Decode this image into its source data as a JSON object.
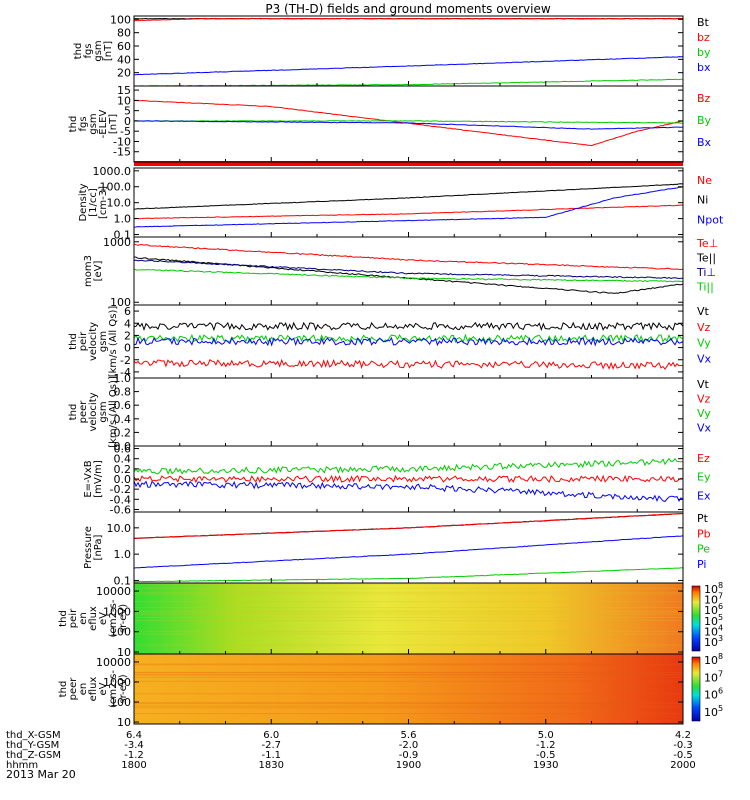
{
  "title": "P3 (TH-D) fields and ground moments overview",
  "date": "2013 Mar 20",
  "footer": {
    "rows": [
      {
        "label": "thd_X-GSM",
        "values": [
          "6.4",
          "6.0",
          "5.6",
          "5.0",
          "4.2"
        ]
      },
      {
        "label": "thd_Y-GSM",
        "values": [
          "-3.4",
          "-2.7",
          "-2.0",
          "-1.2",
          "-0.3"
        ]
      },
      {
        "label": "thd_Z-GSM",
        "values": [
          "-1.2",
          "-1.1",
          "-0.9",
          "-0.5",
          "-0.5"
        ]
      },
      {
        "label": "hhmm",
        "values": [
          "1800",
          "1830",
          "1900",
          "1930",
          "2000"
        ]
      }
    ]
  },
  "chart_data": [
    {
      "type": "line",
      "ylabel": [
        "thd",
        "fgs",
        "gsm",
        "[nT]"
      ],
      "y_ticks": [
        "100",
        "80",
        "60",
        "40",
        "20"
      ],
      "ylim": [
        0,
        105
      ],
      "x_range": [
        "18:00",
        "20:00"
      ],
      "series": [
        {
          "name": "Bt",
          "color": "#000000",
          "x": [
            "18:00",
            "20:00"
          ],
          "y": [
            101,
            101
          ]
        },
        {
          "name": "bz",
          "color": "#ff0000",
          "x": [
            "18:00",
            "18:15",
            "20:00"
          ],
          "y": [
            98,
            101,
            101
          ]
        },
        {
          "name": "by",
          "color": "#00cc00",
          "x": [
            "18:00",
            "19:00",
            "20:00"
          ],
          "y": [
            0,
            2,
            10
          ]
        },
        {
          "name": "bx",
          "color": "#0000ff",
          "x": [
            "18:00",
            "19:00",
            "20:00"
          ],
          "y": [
            17,
            30,
            44
          ]
        }
      ]
    },
    {
      "type": "line",
      "ylabel": [
        "thd",
        "fgs",
        "gsm",
        "-ELEV",
        "[nT]"
      ],
      "y_ticks": [
        "15",
        "10",
        "5",
        "0",
        "-5",
        "-10",
        "-15"
      ],
      "ylim": [
        -20,
        17
      ],
      "x_range": [
        "18:00",
        "20:00"
      ],
      "series": [
        {
          "name": "Bz",
          "color": "#ff0000",
          "x": [
            "18:00",
            "18:30",
            "19:25",
            "19:40",
            "19:50",
            "20:00"
          ],
          "y": [
            10,
            7,
            -8,
            -12,
            -5,
            0
          ]
        },
        {
          "name": "By",
          "color": "#00cc00",
          "x": [
            "18:00",
            "19:00",
            "20:00"
          ],
          "y": [
            0,
            0,
            -1
          ]
        },
        {
          "name": "Bx",
          "color": "#0000ff",
          "x": [
            "18:00",
            "19:00",
            "19:40",
            "20:00"
          ],
          "y": [
            0,
            -1,
            -4,
            -3
          ]
        }
      ]
    },
    {
      "type": "line",
      "ylabel": [
        "Density",
        "[1/cc]",
        "[cm-3]"
      ],
      "scale": "log",
      "y_ticks": [
        "1000.0",
        "100.0",
        "10.0",
        "1.0",
        "0.1"
      ],
      "ylim": [
        0.07,
        1500
      ],
      "x_range": [
        "18:00",
        "20:00"
      ],
      "series": [
        {
          "name": "Ne",
          "color": "#ff0000",
          "x": [
            "18:00",
            "19:00",
            "20:00"
          ],
          "y": [
            1,
            2,
            7
          ]
        },
        {
          "name": "Ni",
          "color": "#000000",
          "x": [
            "18:00",
            "19:00",
            "20:00"
          ],
          "y": [
            4,
            20,
            150
          ]
        },
        {
          "name": "Npot",
          "color": "#0000ff",
          "x": [
            "18:00",
            "19:30",
            "19:45",
            "20:00"
          ],
          "y": [
            0.3,
            1.2,
            20,
            100
          ]
        }
      ]
    },
    {
      "type": "line",
      "ylabel": [
        "mom3",
        "[eV]"
      ],
      "scale": "log",
      "y_ticks": [
        "1000",
        "100"
      ],
      "ylim": [
        90,
        1200
      ],
      "x_range": [
        "18:00",
        "20:00"
      ],
      "series": [
        {
          "name": "Te⊥",
          "color": "#ff0000",
          "x": [
            "18:00",
            "19:00",
            "20:00"
          ],
          "y": [
            900,
            500,
            350
          ]
        },
        {
          "name": "Te||",
          "color": "#000000",
          "x": [
            "18:00",
            "19:00",
            "19:45",
            "20:00"
          ],
          "y": [
            550,
            250,
            140,
            200
          ]
        },
        {
          "name": "Ti⊥",
          "color": "#000080",
          "x": [
            "18:00",
            "19:00",
            "20:00"
          ],
          "y": [
            500,
            300,
            250
          ]
        },
        {
          "name": "Ti||",
          "color": "#00cc00",
          "x": [
            "18:00",
            "19:00",
            "20:00"
          ],
          "y": [
            350,
            250,
            220
          ]
        }
      ]
    },
    {
      "type": "line",
      "ylabel": [
        "thd",
        "peir",
        "velocity",
        "gsm",
        "[km/s (All Qs)]"
      ],
      "y_ticks": [
        "6",
        "4",
        "2",
        "0",
        "-2",
        "-4"
      ],
      "ylim": [
        -5,
        7
      ],
      "x_range": [
        "18:00",
        "20:00"
      ],
      "series": [
        {
          "name": "Vt",
          "color": "#000000",
          "x": [
            "18:00",
            "20:00"
          ],
          "y": [
            3.5,
            3.5
          ]
        },
        {
          "name": "Vz",
          "color": "#ff0000",
          "x": [
            "18:00",
            "20:00"
          ],
          "y": [
            -2.5,
            -3
          ]
        },
        {
          "name": "Vy",
          "color": "#00cc00",
          "x": [
            "18:00",
            "20:00"
          ],
          "y": [
            1.5,
            1.5
          ]
        },
        {
          "name": "Vx",
          "color": "#0000ff",
          "x": [
            "18:00",
            "20:00"
          ],
          "y": [
            1,
            1
          ]
        }
      ]
    },
    {
      "type": "line",
      "ylabel": [
        "thd",
        "peer",
        "velocity",
        "gsm",
        "[km/s (All Qs)]"
      ],
      "y_ticks": [
        "1.0",
        "0.8",
        "0.6",
        "0.4",
        "0.2",
        "0.0"
      ],
      "ylim": [
        0,
        1
      ],
      "x_range": [
        "18:00",
        "20:00"
      ],
      "series": [
        {
          "name": "Vt",
          "color": "#000000",
          "x": [],
          "y": []
        },
        {
          "name": "Vz",
          "color": "#ff0000",
          "x": [],
          "y": []
        },
        {
          "name": "Vy",
          "color": "#00cc00",
          "x": [],
          "y": []
        },
        {
          "name": "Vx",
          "color": "#0000ff",
          "x": [],
          "y": []
        }
      ]
    },
    {
      "type": "line",
      "ylabel": [
        "E=-VxB",
        "[mV/m]"
      ],
      "y_ticks": [
        "0.6",
        "0.4",
        "0.2",
        "0.0",
        "-0.2",
        "-0.4",
        "-0.6"
      ],
      "ylim": [
        -0.65,
        0.65
      ],
      "x_range": [
        "18:00",
        "20:00"
      ],
      "series": [
        {
          "name": "Ez",
          "color": "#ff0000",
          "x": [
            "18:00",
            "20:00"
          ],
          "y": [
            0,
            0
          ]
        },
        {
          "name": "Ey",
          "color": "#00cc00",
          "x": [
            "18:00",
            "19:00",
            "20:00"
          ],
          "y": [
            0.15,
            0.2,
            0.35
          ]
        },
        {
          "name": "Ex",
          "color": "#0000ff",
          "x": [
            "18:00",
            "19:00",
            "20:00"
          ],
          "y": [
            -0.1,
            -0.15,
            -0.4
          ]
        }
      ]
    },
    {
      "type": "line",
      "ylabel": [
        "Pressure",
        "[nPa]"
      ],
      "scale": "log",
      "y_ticks": [
        "10.0",
        "1.0",
        "0.1"
      ],
      "ylim": [
        0.08,
        40
      ],
      "x_range": [
        "18:00",
        "20:00"
      ],
      "series": [
        {
          "name": "Pt",
          "color": "#000000",
          "x": [
            "18:00",
            "19:00",
            "20:00"
          ],
          "y": [
            4,
            10,
            35
          ]
        },
        {
          "name": "Pb",
          "color": "#ff0000",
          "x": [
            "18:00",
            "19:00",
            "20:00"
          ],
          "y": [
            4,
            10,
            35
          ]
        },
        {
          "name": "Pe",
          "color": "#00cc00",
          "x": [
            "18:00",
            "19:00",
            "20:00"
          ],
          "y": [
            0.09,
            0.12,
            0.3
          ]
        },
        {
          "name": "Pi",
          "color": "#0000ff",
          "x": [
            "18:00",
            "19:00",
            "20:00"
          ],
          "y": [
            0.3,
            1,
            5
          ]
        }
      ]
    },
    {
      "type": "heatmap",
      "ylabel": [
        "thd",
        "peir",
        "en",
        "eflux",
        "eV",
        "(cm2-s-",
        "sr-eV)"
      ],
      "y_ticks": [
        "10000",
        "1000",
        "100",
        "10"
      ],
      "ylim": [
        8,
        25000
      ],
      "x_range": [
        "18:00",
        "20:00"
      ],
      "colorbar_ticks": [
        "10^8",
        "10^7",
        "10^6",
        "10^5",
        "10^4",
        "10^3"
      ]
    },
    {
      "type": "heatmap",
      "ylabel": [
        "thd",
        "peer",
        "en",
        "eflux",
        "eV",
        "(cm2-s-",
        "sr-eV)"
      ],
      "y_ticks": [
        "10000",
        "1000",
        "100",
        "10"
      ],
      "ylim": [
        8,
        25000
      ],
      "x_range": [
        "18:00",
        "20:00"
      ],
      "colorbar_ticks": [
        "10^8",
        "10^7",
        "10^6",
        "10^5"
      ]
    }
  ]
}
